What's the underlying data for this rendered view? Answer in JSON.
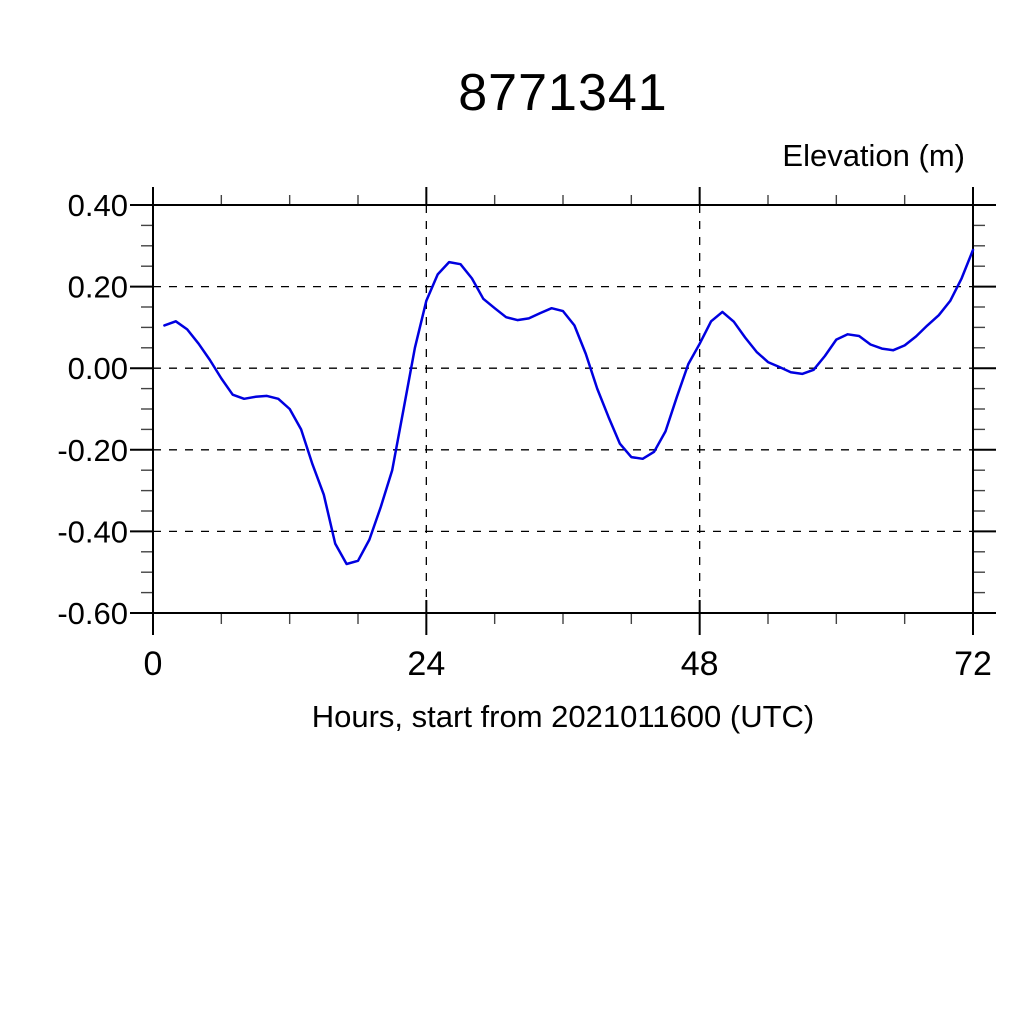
{
  "page": {
    "background": "#ffffff"
  },
  "chart_data": {
    "type": "line",
    "title": "8771341",
    "ylabel": "Elevation (m)",
    "xlabel": "Hours, start from 2021011600 (UTC)",
    "xlim": [
      0,
      72
    ],
    "ylim": [
      -0.6,
      0.4
    ],
    "x_major_ticks": [
      0,
      24,
      48,
      72
    ],
    "x_tick_labels": [
      "0",
      "24",
      "48",
      "72"
    ],
    "x_minor_tick_step": 6,
    "y_major_ticks": [
      0.4,
      0.2,
      0.0,
      -0.2,
      -0.4,
      -0.6
    ],
    "y_tick_labels": [
      "0.40",
      "0.20",
      "0.00",
      "-0.20",
      "-0.40",
      "-0.60"
    ],
    "y_minor_tick_step": 0.05,
    "grid": "dashed-at-major-ticks",
    "legend": "none",
    "line_color": "#0000e0",
    "axis_color": "#000000",
    "series": [
      {
        "name": "elevation",
        "x": [
          1,
          2,
          3,
          4,
          5,
          6,
          7,
          8,
          9,
          10,
          11,
          12,
          13,
          14,
          15,
          16,
          17,
          18,
          19,
          20,
          21,
          22,
          23,
          24,
          25,
          26,
          27,
          28,
          29,
          30,
          31,
          32,
          33,
          34,
          35,
          36,
          37,
          38,
          39,
          40,
          41,
          42,
          43,
          44,
          45,
          46,
          47,
          48,
          49,
          50,
          51,
          52,
          53,
          54,
          55,
          56,
          57,
          58,
          59,
          60,
          61,
          62,
          63,
          64,
          65,
          66,
          67,
          68,
          69,
          70,
          71,
          72
        ],
        "y": [
          0.105,
          0.115,
          0.095,
          0.06,
          0.02,
          -0.025,
          -0.065,
          -0.075,
          -0.07,
          -0.068,
          -0.075,
          -0.1,
          -0.15,
          -0.235,
          -0.31,
          -0.43,
          -0.48,
          -0.472,
          -0.42,
          -0.34,
          -0.25,
          -0.1,
          0.05,
          0.165,
          0.23,
          0.26,
          0.255,
          0.22,
          0.17,
          0.147,
          0.125,
          0.118,
          0.122,
          0.135,
          0.147,
          0.14,
          0.105,
          0.035,
          -0.05,
          -0.12,
          -0.185,
          -0.218,
          -0.222,
          -0.205,
          -0.155,
          -0.07,
          0.01,
          0.06,
          0.115,
          0.138,
          0.114,
          0.075,
          0.04,
          0.015,
          0.003,
          -0.01,
          -0.014,
          -0.004,
          0.03,
          0.07,
          0.083,
          0.079,
          0.058,
          0.048,
          0.044,
          0.056,
          0.078,
          0.105,
          0.13,
          0.165,
          0.22,
          0.29
        ]
      }
    ]
  }
}
